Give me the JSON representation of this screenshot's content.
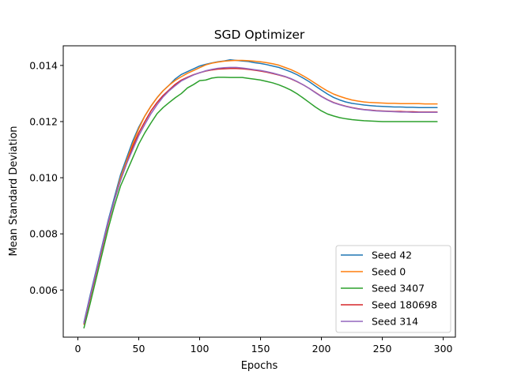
{
  "chart_data": {
    "type": "line",
    "title": "SGD Optimizer",
    "xlabel": "Epochs",
    "ylabel": "Mean Standard Deviation",
    "xlim": [
      -12,
      310
    ],
    "ylim": [
      0.00432,
      0.0147
    ],
    "xticks": [
      0,
      50,
      100,
      150,
      200,
      250,
      300
    ],
    "yticks": [
      0.006,
      0.008,
      0.01,
      0.012,
      0.014
    ],
    "ytick_labels": [
      "0.006",
      "0.008",
      "0.010",
      "0.012",
      "0.014"
    ],
    "grid": false,
    "legend_position": "lower-right",
    "x": [
      5,
      10,
      15,
      20,
      25,
      30,
      35,
      40,
      45,
      50,
      55,
      60,
      65,
      70,
      75,
      80,
      85,
      90,
      95,
      100,
      105,
      110,
      115,
      120,
      125,
      130,
      135,
      140,
      145,
      150,
      155,
      160,
      165,
      170,
      175,
      180,
      185,
      190,
      195,
      200,
      205,
      210,
      215,
      220,
      225,
      230,
      235,
      240,
      245,
      250,
      255,
      260,
      265,
      270,
      275,
      280,
      285,
      290,
      295
    ],
    "series": [
      {
        "name": "Seed 42",
        "color": "#1f77b4",
        "values": [
          0.00485,
          0.0058,
          0.0067,
          0.0076,
          0.0085,
          0.0093,
          0.0101,
          0.0107,
          0.0113,
          0.0118,
          0.0122,
          0.01255,
          0.01285,
          0.0131,
          0.0133,
          0.01352,
          0.01368,
          0.01378,
          0.01388,
          0.01398,
          0.01404,
          0.01409,
          0.01413,
          0.01416,
          0.0142,
          0.01418,
          0.01416,
          0.01414,
          0.0141,
          0.01407,
          0.01403,
          0.01398,
          0.01393,
          0.01385,
          0.01377,
          0.01367,
          0.01355,
          0.01342,
          0.01327,
          0.01312,
          0.01298,
          0.01286,
          0.01277,
          0.0127,
          0.01265,
          0.01262,
          0.01259,
          0.01257,
          0.01255,
          0.01254,
          0.01253,
          0.01252,
          0.01252,
          0.01251,
          0.01251,
          0.0125,
          0.0125,
          0.0125,
          0.0125
        ]
      },
      {
        "name": "Seed 0",
        "color": "#ff7f0e",
        "values": [
          0.00478,
          0.0057,
          0.0066,
          0.0075,
          0.0084,
          0.0092,
          0.01,
          0.0106,
          0.0112,
          0.01175,
          0.0122,
          0.01255,
          0.01285,
          0.0131,
          0.0133,
          0.01347,
          0.0136,
          0.01372,
          0.01382,
          0.01392,
          0.01402,
          0.01408,
          0.01412,
          0.01415,
          0.01417,
          0.01418,
          0.01418,
          0.01417,
          0.01415,
          0.01413,
          0.0141,
          0.01406,
          0.01401,
          0.01393,
          0.01385,
          0.01375,
          0.01363,
          0.0135,
          0.01336,
          0.01322,
          0.01309,
          0.01298,
          0.0129,
          0.01283,
          0.01277,
          0.01273,
          0.0127,
          0.01268,
          0.01267,
          0.01266,
          0.01265,
          0.01265,
          0.01264,
          0.01264,
          0.01264,
          0.01264,
          0.01263,
          0.01263,
          0.01263
        ]
      },
      {
        "name": "Seed 3407",
        "color": "#2ca02c",
        "values": [
          0.00465,
          0.0055,
          0.0064,
          0.0073,
          0.0082,
          0.009,
          0.0097,
          0.0102,
          0.0107,
          0.0112,
          0.0116,
          0.01195,
          0.01228,
          0.0125,
          0.01268,
          0.01285,
          0.013,
          0.0132,
          0.01332,
          0.01346,
          0.01348,
          0.01355,
          0.01358,
          0.01358,
          0.01357,
          0.01357,
          0.01357,
          0.01354,
          0.01351,
          0.01348,
          0.01343,
          0.01338,
          0.01331,
          0.01322,
          0.01312,
          0.01299,
          0.01284,
          0.01268,
          0.01252,
          0.01238,
          0.01227,
          0.0122,
          0.01214,
          0.0121,
          0.01207,
          0.01205,
          0.01203,
          0.01202,
          0.01201,
          0.012,
          0.012,
          0.012,
          0.012,
          0.012,
          0.012,
          0.012,
          0.012,
          0.012,
          0.012
        ]
      },
      {
        "name": "Seed 180698",
        "color": "#d62728",
        "values": [
          0.0048,
          0.0057,
          0.0066,
          0.0075,
          0.0084,
          0.0092,
          0.0099,
          0.0105,
          0.0111,
          0.0116,
          0.012,
          0.01238,
          0.01268,
          0.01293,
          0.01313,
          0.01333,
          0.01348,
          0.01358,
          0.01367,
          0.01374,
          0.0138,
          0.01384,
          0.01387,
          0.01388,
          0.01389,
          0.01389,
          0.01388,
          0.01386,
          0.01383,
          0.0138,
          0.01376,
          0.01371,
          0.01366,
          0.0136,
          0.01352,
          0.01342,
          0.01331,
          0.01318,
          0.01304,
          0.0129,
          0.01278,
          0.01268,
          0.01261,
          0.01255,
          0.0125,
          0.01246,
          0.01243,
          0.01241,
          0.01239,
          0.01238,
          0.01237,
          0.01236,
          0.01236,
          0.01235,
          0.01235,
          0.01234,
          0.01234,
          0.01234,
          0.01234
        ]
      },
      {
        "name": "Seed 314",
        "color": "#9467bd",
        "values": [
          0.00482,
          0.00575,
          0.00665,
          0.00755,
          0.00845,
          0.0092,
          0.0099,
          0.0105,
          0.011,
          0.0115,
          0.0119,
          0.01228,
          0.0126,
          0.01288,
          0.0131,
          0.01328,
          0.01345,
          0.01356,
          0.01366,
          0.01374,
          0.01381,
          0.01386,
          0.0139,
          0.01392,
          0.01393,
          0.01393,
          0.01391,
          0.01388,
          0.01385,
          0.01382,
          0.01378,
          0.01373,
          0.01367,
          0.01361,
          0.01353,
          0.01343,
          0.01331,
          0.01318,
          0.01303,
          0.01289,
          0.01277,
          0.01267,
          0.0126,
          0.01254,
          0.01249,
          0.01245,
          0.01242,
          0.0124,
          0.01238,
          0.01237,
          0.01236,
          0.01235,
          0.01234,
          0.01234,
          0.01233,
          0.01233,
          0.01233,
          0.01233,
          0.01233
        ]
      }
    ]
  }
}
